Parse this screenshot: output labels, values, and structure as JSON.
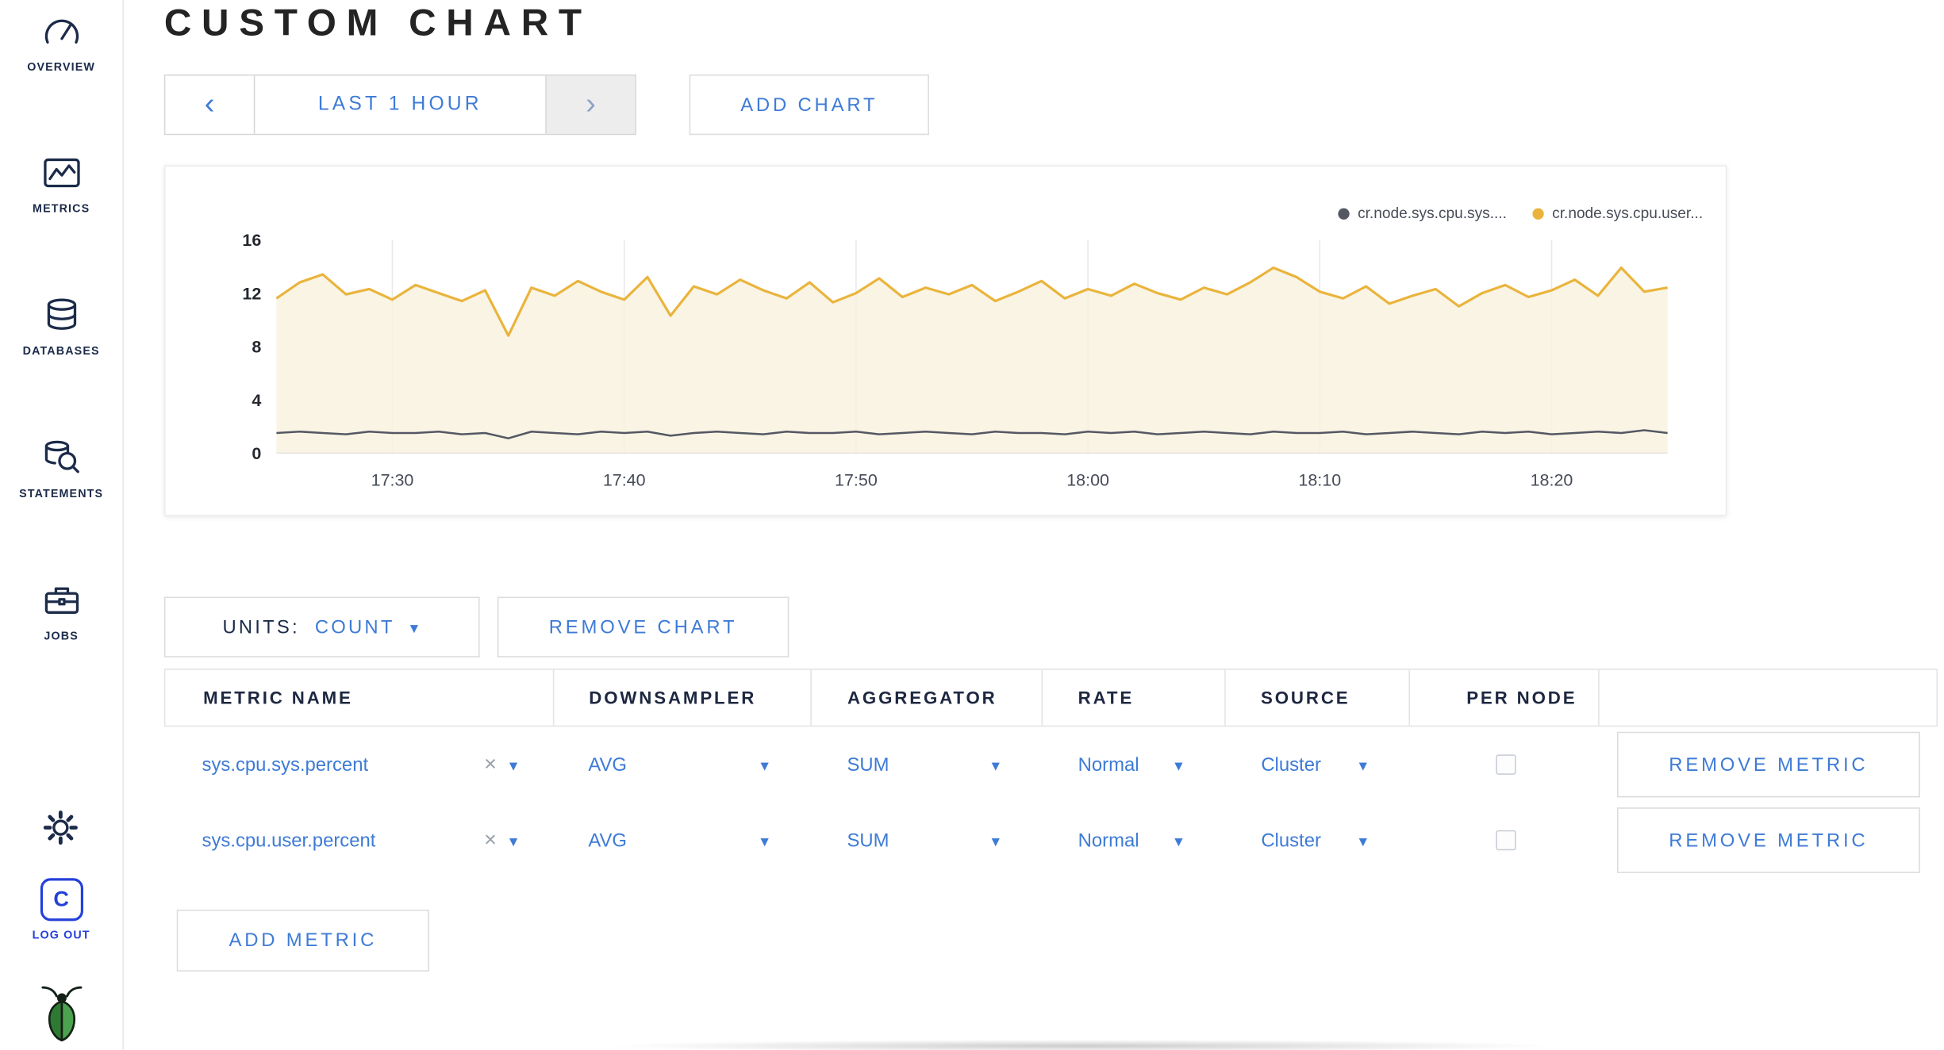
{
  "accent_color": "#3e7bd6",
  "icons": {
    "chevron_left": "‹",
    "chevron_right": "›",
    "caret_down": "▾",
    "clear": "×"
  },
  "sidebar": {
    "items": [
      {
        "label": "OVERVIEW"
      },
      {
        "label": "METRICS"
      },
      {
        "label": "DATABASES"
      },
      {
        "label": "STATEMENTS"
      },
      {
        "label": "JOBS"
      }
    ],
    "logout_badge": "C",
    "logout_label": "LOG OUT"
  },
  "header": {
    "title": "CUSTOM CHART"
  },
  "timebar": {
    "range_label": "LAST 1 HOUR",
    "add_chart_label": "ADD CHART"
  },
  "chart": {
    "legend": [
      {
        "label": "cr.node.sys.cpu.sys....",
        "color": "#545863"
      },
      {
        "label": "cr.node.sys.cpu.user...",
        "color": "#eab43c"
      }
    ]
  },
  "chart_data": {
    "type": "line",
    "title": "",
    "xlabel": "",
    "ylabel": "",
    "x_tick_labels": [
      "17:30",
      "17:40",
      "17:50",
      "18:00",
      "18:10",
      "18:20"
    ],
    "x_tick_minutes": [
      5,
      15,
      25,
      35,
      45,
      55
    ],
    "x_range_minutes": 60,
    "y_ticks": [
      0,
      4,
      8,
      12,
      16
    ],
    "ylim": [
      0,
      16
    ],
    "grid": "vertical",
    "legend_position": "top-right",
    "series": [
      {
        "name": "cr.node.sys.cpu.sys....",
        "color": "#545863",
        "fill": null,
        "values": [
          1.5,
          1.6,
          1.5,
          1.4,
          1.6,
          1.5,
          1.5,
          1.6,
          1.4,
          1.5,
          1.1,
          1.6,
          1.5,
          1.4,
          1.6,
          1.5,
          1.6,
          1.3,
          1.5,
          1.6,
          1.5,
          1.4,
          1.6,
          1.5,
          1.5,
          1.6,
          1.4,
          1.5,
          1.6,
          1.5,
          1.4,
          1.6,
          1.5,
          1.5,
          1.4,
          1.6,
          1.5,
          1.6,
          1.4,
          1.5,
          1.6,
          1.5,
          1.4,
          1.6,
          1.5,
          1.5,
          1.6,
          1.4,
          1.5,
          1.6,
          1.5,
          1.4,
          1.6,
          1.5,
          1.6,
          1.4,
          1.5,
          1.6,
          1.5,
          1.7,
          1.5
        ]
      },
      {
        "name": "cr.node.sys.cpu.user...",
        "color": "#eab43c",
        "fill": "#f8f1dd",
        "values": [
          11.6,
          12.8,
          13.4,
          11.9,
          12.3,
          11.5,
          12.6,
          12.0,
          11.4,
          12.2,
          8.8,
          12.4,
          11.8,
          12.9,
          12.1,
          11.5,
          13.2,
          10.3,
          12.5,
          11.9,
          13.0,
          12.2,
          11.6,
          12.8,
          11.3,
          12.0,
          13.1,
          11.7,
          12.4,
          11.9,
          12.6,
          11.4,
          12.1,
          12.9,
          11.6,
          12.3,
          11.8,
          12.7,
          12.0,
          11.5,
          12.4,
          11.9,
          12.8,
          13.9,
          13.2,
          12.1,
          11.6,
          12.5,
          11.2,
          11.8,
          12.3,
          11.0,
          12.0,
          12.6,
          11.7,
          12.2,
          13.0,
          11.8,
          13.9,
          12.1,
          12.4
        ]
      }
    ]
  },
  "controls": {
    "units_label": "UNITS:",
    "units_value": "COUNT",
    "remove_chart_label": "REMOVE CHART",
    "add_metric_label": "ADD METRIC"
  },
  "table": {
    "headers": [
      "METRIC NAME",
      "DOWNSAMPLER",
      "AGGREGATOR",
      "RATE",
      "SOURCE",
      "PER NODE"
    ],
    "remove_metric_label": "REMOVE METRIC",
    "rows": [
      {
        "metric": "sys.cpu.sys.percent",
        "downsampler": "AVG",
        "aggregator": "SUM",
        "rate": "Normal",
        "source": "Cluster",
        "per_node_checked": false
      },
      {
        "metric": "sys.cpu.user.percent",
        "downsampler": "AVG",
        "aggregator": "SUM",
        "rate": "Normal",
        "source": "Cluster",
        "per_node_checked": false
      }
    ]
  }
}
